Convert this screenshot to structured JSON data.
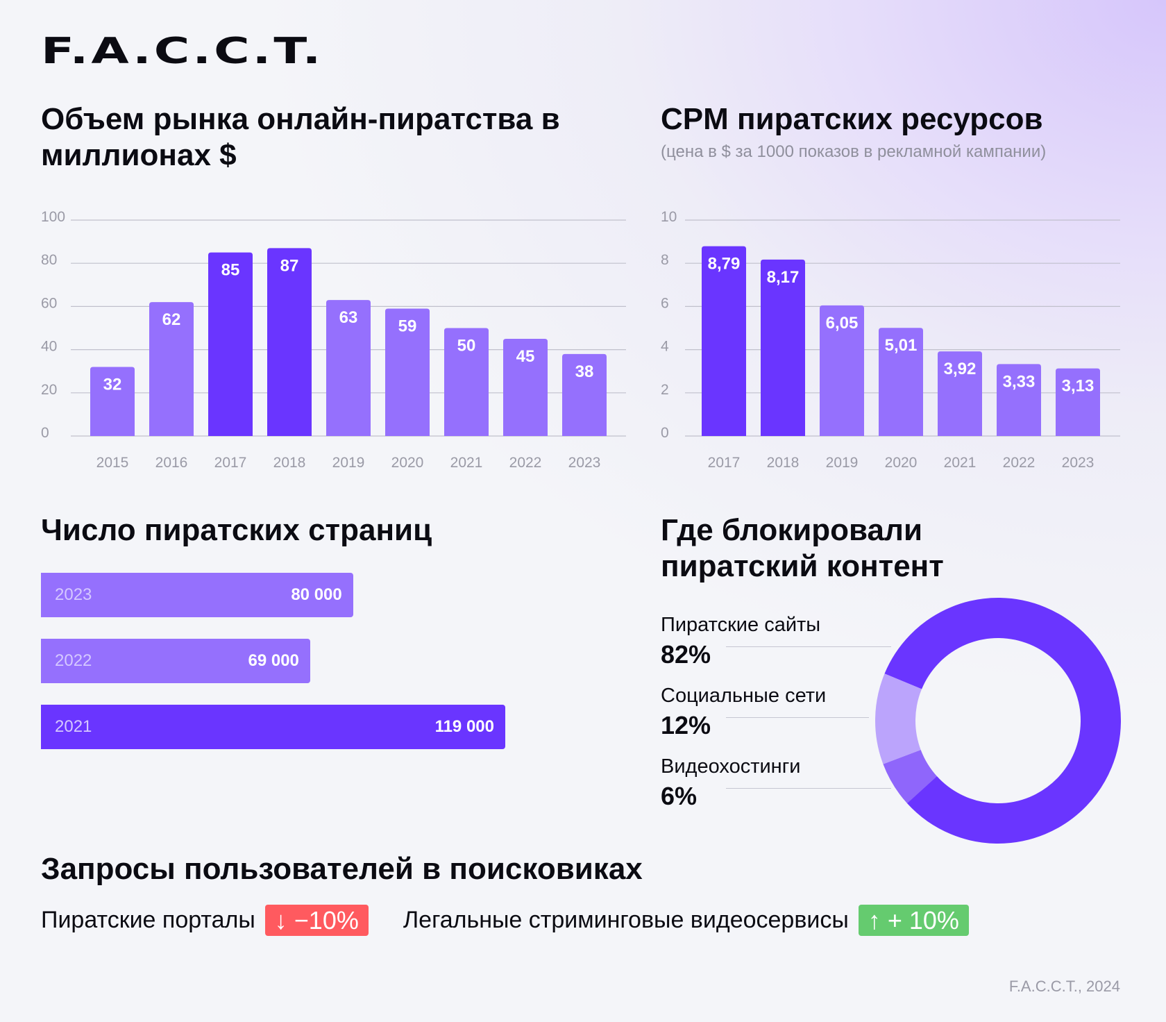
{
  "brand": {
    "logo": "F.A.C.C.T.",
    "footer": "F.A.C.C.T., 2024"
  },
  "colors": {
    "dark": "#6a35ff",
    "light": "#9570fd",
    "pale": "#bba4fc",
    "medium": "#8f66fb",
    "down": "#ff5a5f",
    "up": "#65cb6f"
  },
  "chart_data": [
    {
      "type": "bar",
      "title": "Объем рынка онлайн-пиратства в миллионах $",
      "categories": [
        "2015",
        "2016",
        "2017",
        "2018",
        "2019",
        "2020",
        "2021",
        "2022",
        "2023"
      ],
      "values": [
        32,
        62,
        85,
        87,
        63,
        59,
        50,
        45,
        38
      ],
      "labels": [
        "32",
        "62",
        "85",
        "87",
        "63",
        "59",
        "50",
        "45",
        "38"
      ],
      "highlight": [
        "2017",
        "2018"
      ],
      "ylim": [
        0,
        100
      ],
      "yticks": [
        "0",
        "20",
        "40",
        "60",
        "80",
        "100"
      ],
      "grid": true
    },
    {
      "type": "bar",
      "title": "CPM пиратских ресурсов",
      "subtitle": "(цена в $ за 1000 показов в рекламной кампании)",
      "categories": [
        "2017",
        "2018",
        "2019",
        "2020",
        "2021",
        "2022",
        "2023"
      ],
      "values": [
        8.79,
        8.17,
        6.05,
        5.01,
        3.92,
        3.33,
        3.13
      ],
      "labels": [
        "8,79",
        "8,17",
        "6,05",
        "5,01",
        "3,92",
        "3,33",
        "3,13"
      ],
      "highlight": [
        "2017",
        "2018"
      ],
      "ylim": [
        0,
        10
      ],
      "yticks": [
        "0",
        "2",
        "4",
        "6",
        "8",
        "10"
      ],
      "grid": true
    },
    {
      "type": "bar",
      "orientation": "horizontal",
      "title": "Число пиратских страниц",
      "categories": [
        "2023",
        "2022",
        "2021"
      ],
      "values": [
        80000,
        69000,
        119000
      ],
      "labels": [
        "80 000",
        "69 000",
        "119 000"
      ],
      "highlight": [
        "2021"
      ]
    },
    {
      "type": "pie",
      "donut": true,
      "title": "Где блокировали пиратский контент",
      "slices": [
        {
          "label": "Пиратские сайты",
          "value": 82,
          "text": "82%"
        },
        {
          "label": "Социальные сети",
          "value": 12,
          "text": "12%"
        },
        {
          "label": "Видеохостинги",
          "value": 6,
          "text": "6%"
        }
      ]
    }
  ],
  "search": {
    "title": "Запросы пользователей в поисковиках",
    "items": [
      {
        "label": "Пиратские порталы",
        "change": "−10%",
        "icon": "arrow-down-icon"
      },
      {
        "label": "Легальные стриминговые видеосервисы",
        "change": "+ 10%",
        "icon": "arrow-up-icon"
      }
    ]
  }
}
